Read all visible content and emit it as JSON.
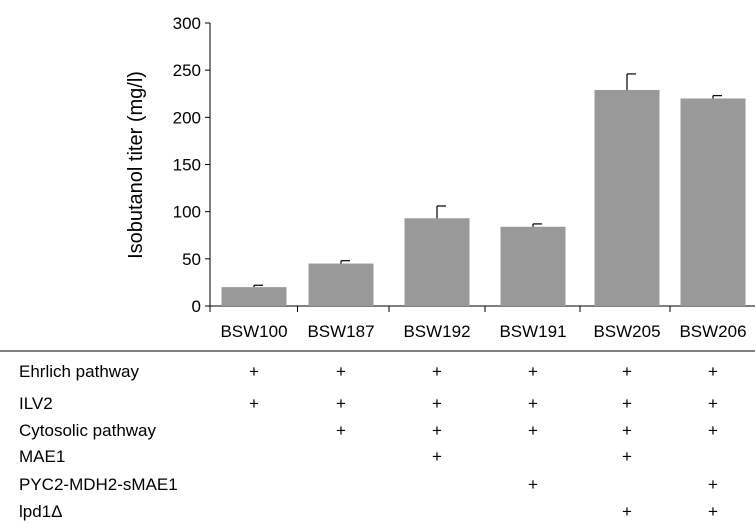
{
  "chart_data": {
    "type": "bar",
    "title": "",
    "xlabel": "",
    "ylabel": "Isobutanol titer (mg/l)",
    "ylim": [
      0,
      300
    ],
    "yticks": [
      0,
      50,
      100,
      150,
      200,
      250,
      300
    ],
    "categories": [
      "BSW100",
      "BSW187",
      "BSW192",
      "BSW191",
      "BSW205",
      "BSW206"
    ],
    "values": [
      20,
      45,
      93,
      84,
      229,
      220
    ],
    "errors": [
      2,
      3,
      13,
      3,
      17,
      3
    ],
    "bar_color": "#999999",
    "grid": false
  },
  "table": {
    "rows": [
      {
        "label": "Ehrlich pathway",
        "marks": [
          "+",
          "+",
          "+",
          "+",
          "+",
          "+"
        ]
      },
      {
        "label": "ILV2",
        "marks": [
          "+",
          "+",
          "+",
          "+",
          "+",
          "+"
        ]
      },
      {
        "label": "Cytosolic pathway",
        "marks": [
          "",
          "+",
          "+",
          "+",
          "+",
          "+"
        ]
      },
      {
        "label": "MAE1",
        "marks": [
          "",
          "",
          "+",
          "",
          "+",
          ""
        ]
      },
      {
        "label": "PYC2-MDH2-sMAE1",
        "marks": [
          "",
          "",
          "",
          "+",
          "",
          "+"
        ]
      },
      {
        "label": "lpd1Δ",
        "marks": [
          "",
          "",
          "",
          "",
          "+",
          "+"
        ]
      }
    ]
  }
}
